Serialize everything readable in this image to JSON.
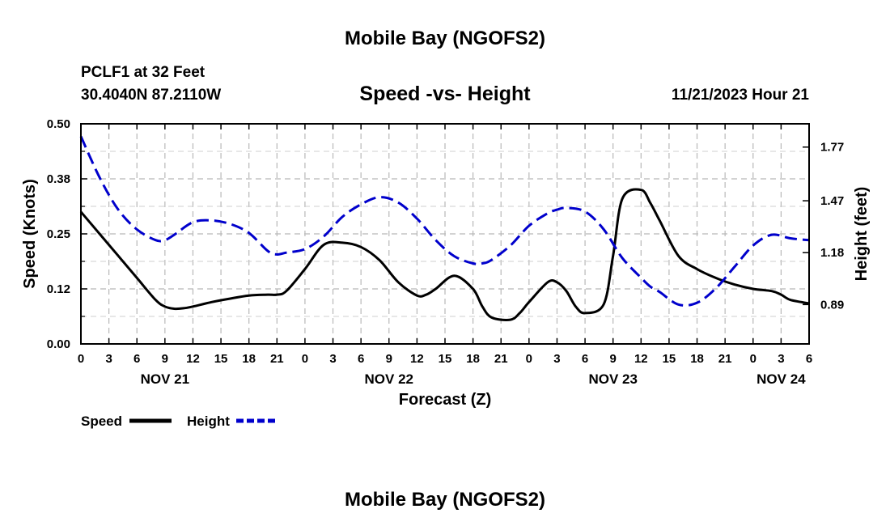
{
  "chart_data": {
    "type": "line",
    "title": "Mobile Bay (NGOFS2)",
    "subtitle": "Speed -vs- Height",
    "station": "PCLF1 at 32 Feet",
    "location": "30.4040N  87.2110W",
    "datetime": "11/21/2023 Hour 21",
    "footer_title": "Mobile Bay (NGOFS2)",
    "xlabel": "Forecast (Z)",
    "ylabel_left": "Speed (Knots)",
    "ylabel_right": "Height (feet)",
    "x_range_hours": [
      0,
      78
    ],
    "x_tick_step_hours": 3,
    "x_tick_labels": [
      "0",
      "3",
      "6",
      "9",
      "12",
      "15",
      "18",
      "21",
      "0",
      "3",
      "6",
      "9",
      "12",
      "15",
      "18",
      "21",
      "0",
      "3",
      "6",
      "9",
      "12",
      "15",
      "18",
      "21",
      "0",
      "3",
      "6"
    ],
    "day_labels": [
      {
        "hour": 9,
        "label": "NOV 21"
      },
      {
        "hour": 33,
        "label": "NOV 22"
      },
      {
        "hour": 57,
        "label": "NOV 23"
      },
      {
        "hour": 75,
        "label": "NOV 24"
      }
    ],
    "ylim_left": [
      0,
      0.5
    ],
    "yticks_left": [
      "0.00",
      "0.12",
      "0.25",
      "0.38",
      "0.50"
    ],
    "yticks_left_values": [
      0,
      0.125,
      0.25,
      0.375,
      0.5
    ],
    "ylim_right": [
      0.67,
      1.9
    ],
    "yticks_right": [
      "0.89",
      "1.18",
      "1.47",
      "1.77"
    ],
    "yticks_right_values": [
      0.89,
      1.18,
      1.47,
      1.77
    ],
    "grid": true,
    "legend_position": "bottom-left",
    "series": [
      {
        "name": "Speed",
        "axis": "left",
        "color": "#000000",
        "style": "solid",
        "x": [
          0,
          2,
          4,
          6,
          8,
          9,
          10,
          11,
          12,
          14,
          16,
          18,
          20,
          21,
          22,
          24,
          26,
          28,
          30,
          32,
          34,
          36,
          37,
          38,
          40,
          42,
          43,
          44,
          46,
          47,
          48,
          50,
          51,
          52,
          53,
          54,
          56,
          57,
          58,
          60,
          61,
          62,
          64,
          66,
          68,
          70,
          72,
          74,
          75,
          76,
          78
        ],
        "y": [
          0.3,
          0.25,
          0.2,
          0.15,
          0.1,
          0.085,
          0.08,
          0.081,
          0.085,
          0.095,
          0.103,
          0.11,
          0.112,
          0.112,
          0.12,
          0.17,
          0.225,
          0.23,
          0.22,
          0.19,
          0.14,
          0.11,
          0.112,
          0.125,
          0.155,
          0.125,
          0.085,
          0.06,
          0.055,
          0.07,
          0.095,
          0.14,
          0.14,
          0.12,
          0.085,
          0.07,
          0.09,
          0.2,
          0.33,
          0.35,
          0.32,
          0.28,
          0.2,
          0.17,
          0.15,
          0.135,
          0.125,
          0.12,
          0.112,
          0.1,
          0.092
        ]
      },
      {
        "name": "Height",
        "axis": "right",
        "color": "#0000cc",
        "style": "dashed",
        "x": [
          0,
          2,
          4,
          6,
          8,
          9,
          10,
          12,
          14,
          16,
          18,
          20,
          21,
          22,
          24,
          26,
          28,
          30,
          32,
          34,
          36,
          38,
          40,
          42,
          43,
          44,
          46,
          48,
          50,
          51,
          52,
          54,
          56,
          58,
          60,
          61,
          62,
          64,
          66,
          68,
          70,
          72,
          74,
          76,
          78
        ],
        "y": [
          1.83,
          1.6,
          1.42,
          1.31,
          1.25,
          1.25,
          1.28,
          1.35,
          1.36,
          1.34,
          1.29,
          1.19,
          1.17,
          1.18,
          1.2,
          1.27,
          1.38,
          1.45,
          1.49,
          1.46,
          1.37,
          1.25,
          1.16,
          1.12,
          1.12,
          1.14,
          1.22,
          1.33,
          1.4,
          1.42,
          1.43,
          1.41,
          1.31,
          1.15,
          1.04,
          0.99,
          0.96,
          0.89,
          0.9,
          0.98,
          1.1,
          1.22,
          1.28,
          1.26,
          1.25
        ]
      }
    ],
    "legend": [
      {
        "label": "Speed",
        "color": "#000000",
        "style": "solid"
      },
      {
        "label": "Height",
        "color": "#0000cc",
        "style": "dashed"
      }
    ]
  }
}
